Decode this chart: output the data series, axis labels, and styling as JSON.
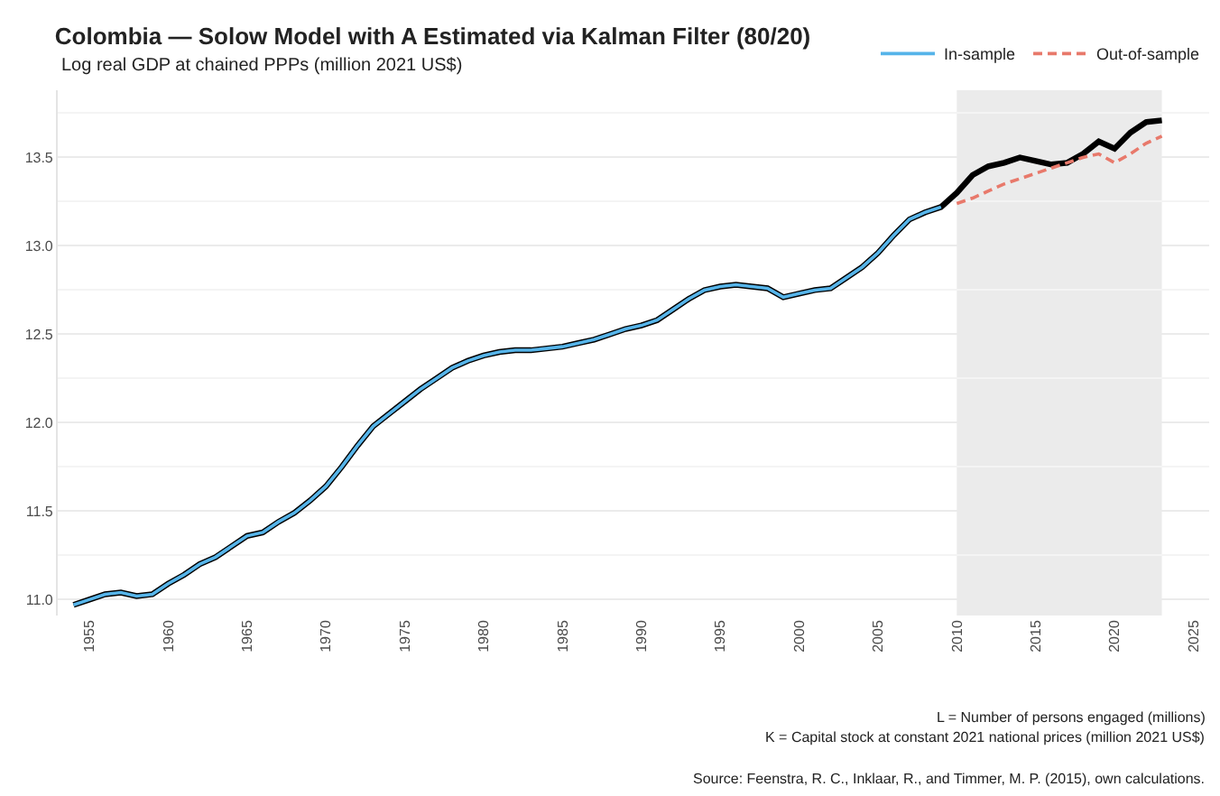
{
  "chart_data": {
    "type": "line",
    "title": "Colombia — Solow Model with A Estimated via Kalman Filter (80/20)",
    "subtitle": "Log real GDP at chained PPPs (million 2021 US$)",
    "series": [
      {
        "color": "#000000",
        "x": [
          1954,
          1955,
          1956,
          1957,
          1958,
          1959,
          1960,
          1961,
          1962,
          1963,
          1964,
          1965,
          1966,
          1967,
          1968,
          1969,
          1970,
          1971,
          1972,
          1973,
          1974,
          1975,
          1976,
          1977,
          1978,
          1979,
          1980,
          1981,
          1982,
          1983,
          1984,
          1985,
          1986,
          1987,
          1988,
          1989,
          1990,
          1991,
          1992,
          1993,
          1994,
          1995,
          1996,
          1997,
          1998,
          1999,
          2000,
          2001,
          2002,
          2003,
          2004,
          2005,
          2006,
          2007,
          2008,
          2009,
          2010,
          2011,
          2012,
          2013,
          2014,
          2015,
          2016,
          2017,
          2018,
          2019,
          2020,
          2021,
          2022,
          2023
        ],
        "values": [
          10.97,
          11.0,
          11.03,
          11.04,
          11.02,
          11.03,
          11.09,
          11.14,
          11.2,
          11.24,
          11.3,
          11.36,
          11.38,
          11.44,
          11.49,
          11.56,
          11.64,
          11.75,
          11.87,
          11.98,
          12.05,
          12.12,
          12.19,
          12.25,
          12.31,
          12.35,
          12.38,
          12.4,
          12.41,
          12.41,
          12.42,
          12.43,
          12.45,
          12.47,
          12.5,
          12.53,
          12.55,
          12.58,
          12.64,
          12.7,
          12.75,
          12.77,
          12.78,
          12.77,
          12.76,
          12.71,
          12.73,
          12.75,
          12.76,
          12.82,
          12.88,
          12.96,
          13.06,
          13.15,
          13.19,
          13.22,
          13.3,
          13.4,
          13.45,
          13.47,
          13.5,
          13.48,
          13.46,
          13.47,
          13.52,
          13.59,
          13.55,
          13.64,
          13.7,
          13.71
        ]
      },
      {
        "name": "In-sample",
        "color": "#56b4e9",
        "x": [
          1954,
          1955,
          1956,
          1957,
          1958,
          1959,
          1960,
          1961,
          1962,
          1963,
          1964,
          1965,
          1966,
          1967,
          1968,
          1969,
          1970,
          1971,
          1972,
          1973,
          1974,
          1975,
          1976,
          1977,
          1978,
          1979,
          1980,
          1981,
          1982,
          1983,
          1984,
          1985,
          1986,
          1987,
          1988,
          1989,
          1990,
          1991,
          1992,
          1993,
          1994,
          1995,
          1996,
          1997,
          1998,
          1999,
          2000,
          2001,
          2002,
          2003,
          2004,
          2005,
          2006,
          2007,
          2008,
          2009
        ],
        "values": [
          10.97,
          11.0,
          11.03,
          11.04,
          11.02,
          11.03,
          11.09,
          11.14,
          11.2,
          11.24,
          11.3,
          11.36,
          11.38,
          11.44,
          11.49,
          11.56,
          11.64,
          11.75,
          11.87,
          11.98,
          12.05,
          12.12,
          12.19,
          12.25,
          12.31,
          12.35,
          12.38,
          12.4,
          12.41,
          12.41,
          12.42,
          12.43,
          12.45,
          12.47,
          12.5,
          12.53,
          12.55,
          12.58,
          12.64,
          12.7,
          12.75,
          12.77,
          12.78,
          12.77,
          12.76,
          12.71,
          12.73,
          12.75,
          12.76,
          12.82,
          12.88,
          12.96,
          13.06,
          13.15,
          13.19,
          13.22
        ]
      },
      {
        "name": "Out-of-sample",
        "color": "#e8796b",
        "line_style": "dashed",
        "x": [
          2010,
          2011,
          2012,
          2013,
          2014,
          2015,
          2016,
          2017,
          2018,
          2019,
          2020,
          2021,
          2022,
          2023
        ],
        "values": [
          13.24,
          13.27,
          13.31,
          13.35,
          13.38,
          13.41,
          13.44,
          13.47,
          13.5,
          13.52,
          13.47,
          13.52,
          13.58,
          13.62
        ]
      }
    ],
    "xlim": [
      1953,
      2026
    ],
    "xticks": [
      1955,
      1960,
      1965,
      1970,
      1975,
      1980,
      1985,
      1990,
      1995,
      2000,
      2005,
      2010,
      2015,
      2020,
      2025
    ],
    "ylim": [
      10.91,
      13.88
    ],
    "yticks": [
      {
        "value": 11.0,
        "label": "11.0"
      },
      {
        "value": 11.5,
        "label": "11.5"
      },
      {
        "value": 12.0,
        "label": "12.0"
      },
      {
        "value": 12.5,
        "label": "12.5"
      },
      {
        "value": 13.0,
        "label": "13.0"
      },
      {
        "value": 13.5,
        "label": "13.5"
      }
    ],
    "bands": [
      {
        "axis": "x",
        "from": 2010,
        "to": 2023,
        "color": "#ebebeb"
      }
    ],
    "grid": "y",
    "legend": "top right",
    "line_style": "solid",
    "marker": "none",
    "annotations": [
      "L = Number of persons engaged (millions)",
      "K = Capital stock at constant 2021 national prices (million 2021 US$)",
      "Source: Feenstra, R. C., Inklaar, R., and Timmer, M. P. (2015), own calculations."
    ]
  }
}
